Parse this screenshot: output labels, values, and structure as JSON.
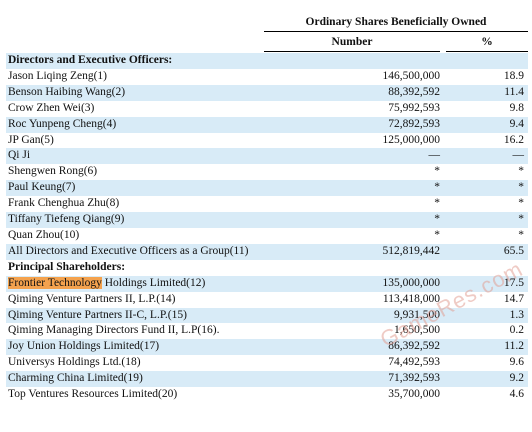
{
  "header": {
    "title": "Ordinary Shares Beneficially Owned",
    "col_number": "Number",
    "col_percent": "%"
  },
  "rows": [
    {
      "type": "section",
      "name": "Directors and Executive Officers:",
      "number": "",
      "percent": "",
      "shade": true
    },
    {
      "type": "row",
      "name": "Jason Liqing Zeng(1)",
      "number": "146,500,000",
      "percent": "18.9",
      "shade": false
    },
    {
      "type": "row",
      "name": "Benson Haibing Wang(2)",
      "number": "88,392,592",
      "percent": "11.4",
      "shade": true
    },
    {
      "type": "row",
      "name": "Crow Zhen Wei(3)",
      "number": "75,992,593",
      "percent": "9.8",
      "shade": false
    },
    {
      "type": "row",
      "name": "Roc Yunpeng Cheng(4)",
      "number": "72,892,593",
      "percent": "9.4",
      "shade": true
    },
    {
      "type": "row",
      "name": "JP Gan(5)",
      "number": "125,000,000",
      "percent": "16.2",
      "shade": false
    },
    {
      "type": "row",
      "name": "Qi Ji",
      "number": "—",
      "percent": "—",
      "shade": true
    },
    {
      "type": "row",
      "name": "Shengwen Rong(6)",
      "number": "*",
      "percent": "*",
      "shade": false
    },
    {
      "type": "row",
      "name": "Paul Keung(7)",
      "number": "*",
      "percent": "*",
      "shade": true
    },
    {
      "type": "row",
      "name": "Frank Chenghua Zhu(8)",
      "number": "*",
      "percent": "*",
      "shade": false
    },
    {
      "type": "row",
      "name": "Tiffany Tiefeng Qiang(9)",
      "number": "*",
      "percent": "*",
      "shade": true
    },
    {
      "type": "row",
      "name": "Quan Zhou(10)",
      "number": "*",
      "percent": "*",
      "shade": false
    },
    {
      "type": "row",
      "name": "All Directors and Executive Officers as a Group(11)",
      "number": "512,819,442",
      "percent": "65.5",
      "shade": true
    },
    {
      "type": "section",
      "name": "Principal Shareholders:",
      "number": "",
      "percent": "",
      "shade": false
    },
    {
      "type": "row",
      "name": "Frontier Technology",
      "name_rest": " Holdings Limited(12)",
      "highlight": true,
      "number": "135,000,000",
      "percent": "17.5",
      "shade": true
    },
    {
      "type": "row",
      "name": "Qiming Venture Partners II, L.P.(14)",
      "number": "113,418,000",
      "percent": "14.7",
      "shade": false
    },
    {
      "type": "row",
      "name": "Qiming Venture Partners II-C, L.P.(15)",
      "number": "9,931,500",
      "percent": "1.3",
      "shade": true
    },
    {
      "type": "row",
      "name": "Qiming Managing Directors Fund II, L.P(16).",
      "number": "1,650,500",
      "percent": "0.2",
      "shade": false
    },
    {
      "type": "row",
      "name": "Joy Union Holdings Limited(17)",
      "number": "86,392,592",
      "percent": "11.2",
      "shade": true
    },
    {
      "type": "row",
      "name": "Universys Holdings Ltd.(18)",
      "number": "74,492,593",
      "percent": "9.6",
      "shade": false
    },
    {
      "type": "row",
      "name": "Charming China Limited(19)",
      "number": "71,392,593",
      "percent": "9.2",
      "shade": true
    },
    {
      "type": "row",
      "name": "Top Ventures Resources Limited(20)",
      "number": "35,700,000",
      "percent": "4.6",
      "shade": false
    }
  ],
  "watermark": "GameRes.com",
  "colors": {
    "row_shade": "#d8ebf7",
    "highlight": "#f4a24e"
  }
}
